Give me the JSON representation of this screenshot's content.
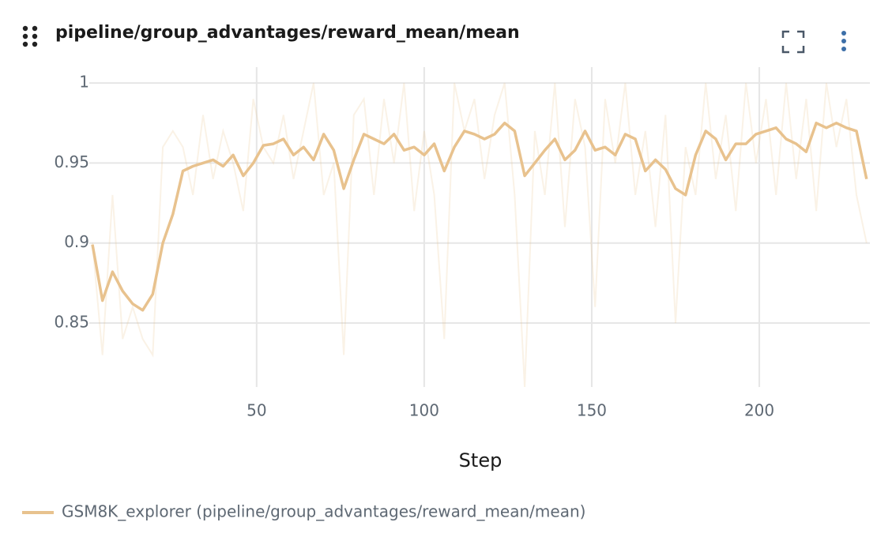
{
  "chart_data": {
    "type": "line",
    "title": "pipeline/group_advantages/reward_mean/mean",
    "xlabel": "Step",
    "x": [
      1,
      4,
      7,
      10,
      13,
      16,
      19,
      22,
      25,
      28,
      31,
      34,
      37,
      40,
      43,
      46,
      49,
      52,
      55,
      58,
      61,
      64,
      67,
      70,
      73,
      76,
      79,
      82,
      85,
      88,
      91,
      94,
      97,
      100,
      103,
      106,
      109,
      112,
      115,
      118,
      121,
      124,
      127,
      130,
      133,
      136,
      139,
      142,
      145,
      148,
      151,
      154,
      157,
      160,
      163,
      166,
      169,
      172,
      175,
      178,
      181,
      184,
      187,
      190,
      193,
      196,
      199,
      202,
      205,
      208,
      211,
      214,
      217,
      220,
      223,
      226,
      229,
      232
    ],
    "series": [
      {
        "name": "GSM8K_explorer (pipeline/group_advantages/reward_mean/mean)",
        "color": "#e8c28e",
        "values": [
          0.899,
          0.864,
          0.882,
          0.87,
          0.862,
          0.858,
          0.868,
          0.9,
          0.918,
          0.945,
          0.948,
          0.95,
          0.952,
          0.948,
          0.955,
          0.942,
          0.95,
          0.961,
          0.962,
          0.965,
          0.955,
          0.96,
          0.952,
          0.968,
          0.958,
          0.934,
          0.952,
          0.968,
          0.965,
          0.962,
          0.968,
          0.958,
          0.96,
          0.955,
          0.962,
          0.945,
          0.96,
          0.97,
          0.968,
          0.965,
          0.968,
          0.975,
          0.97,
          0.942,
          0.95,
          0.958,
          0.965,
          0.952,
          0.958,
          0.97,
          0.958,
          0.96,
          0.955,
          0.968,
          0.965,
          0.945,
          0.952,
          0.946,
          0.934,
          0.93,
          0.955,
          0.97,
          0.965,
          0.952,
          0.962,
          0.962,
          0.968,
          0.97,
          0.972,
          0.965,
          0.962,
          0.957,
          0.975,
          0.972,
          0.975,
          0.972,
          0.97,
          0.94
        ],
        "raw_values": [
          0.9,
          0.83,
          0.93,
          0.84,
          0.86,
          0.84,
          0.83,
          0.96,
          0.97,
          0.96,
          0.93,
          0.98,
          0.94,
          0.97,
          0.95,
          0.92,
          0.99,
          0.96,
          0.95,
          0.98,
          0.94,
          0.97,
          1.0,
          0.93,
          0.95,
          0.83,
          0.98,
          0.99,
          0.93,
          0.99,
          0.95,
          1.0,
          0.92,
          0.97,
          0.93,
          0.84,
          1.0,
          0.97,
          0.99,
          0.94,
          0.98,
          1.0,
          0.93,
          0.81,
          0.97,
          0.93,
          1.0,
          0.91,
          0.99,
          0.96,
          0.86,
          0.99,
          0.95,
          1.0,
          0.93,
          0.97,
          0.91,
          0.98,
          0.85,
          0.96,
          0.93,
          1.0,
          0.94,
          0.98,
          0.92,
          1.0,
          0.95,
          0.99,
          0.93,
          1.0,
          0.94,
          0.99,
          0.92,
          1.0,
          0.96,
          0.99,
          0.93,
          0.9
        ]
      }
    ],
    "xlim": [
      1,
      233
    ],
    "xticks": [
      50,
      100,
      150,
      200
    ],
    "ylim": [
      0.81,
      1.005
    ],
    "yticks": [
      0.85,
      0.9,
      0.95,
      1
    ],
    "grid": true
  }
}
